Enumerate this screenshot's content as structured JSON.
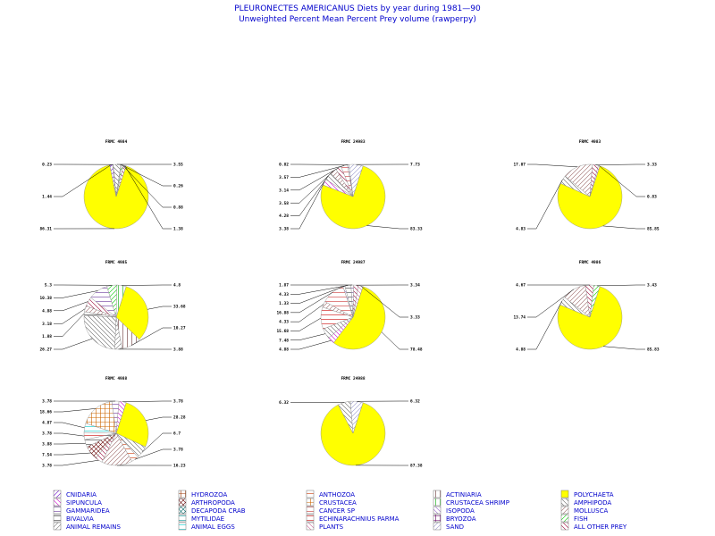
{
  "title": "PLEURONECTES AMERICANUS Diets by year during 1981—90",
  "subtitle": "Unweighted Percent Mean Percent Prey  volume (rawperpy)",
  "legend": [
    {
      "name": "CNIDARIA",
      "color": "#6600cc"
    },
    {
      "name": "SIPUNCULA",
      "color": "#cc00cc"
    },
    {
      "name": "GAMMARIDEA",
      "color": "#663399"
    },
    {
      "name": "BIVALVIA",
      "color": "#333333"
    },
    {
      "name": "ANIMAL REMAINS",
      "color": "#777777"
    },
    {
      "name": "HYDROZOA",
      "color": "#993300"
    },
    {
      "name": "ARTHROPODA",
      "color": "#660000"
    },
    {
      "name": "DECAPODA CRAB",
      "color": "#006666"
    },
    {
      "name": "MYTILIDAE",
      "color": "#009999"
    },
    {
      "name": "ANIMAL EGGS",
      "color": "#00cccc"
    },
    {
      "name": "ANTHOZOA",
      "color": "#cc3300"
    },
    {
      "name": "CRUSTACEA",
      "color": "#cc6600"
    },
    {
      "name": "CANCER SP",
      "color": "#cc3333"
    },
    {
      "name": "ECHINARACHNIUS PARMA",
      "color": "#cc0000"
    },
    {
      "name": "PLANTS",
      "color": "#cc6699"
    },
    {
      "name": "ACTINIARIA",
      "color": "#663333"
    },
    {
      "name": "CRUSTACEA SHRIMP",
      "color": "#00aa00"
    },
    {
      "name": "ISOPODA",
      "color": "#9966cc"
    },
    {
      "name": "BRYOZOA",
      "color": "#660066"
    },
    {
      "name": "SAND",
      "color": "#9999cc"
    },
    {
      "name": "POLYCHAETA",
      "color": "#ffff00"
    },
    {
      "name": "AMPHIPODA",
      "color": "#666666"
    },
    {
      "name": "MOLLUSCA",
      "color": "#996666"
    },
    {
      "name": "FISH",
      "color": "#00cc00"
    },
    {
      "name": "ALL OTHER PREY",
      "color": "#990033"
    }
  ],
  "chart_data": [
    {
      "type": "pie",
      "title": "FRMC 4984",
      "slices": [
        {
          "category": "POLYCHAETA",
          "value": 86.31,
          "label": "86.31"
        },
        {
          "category": "CNIDARIA",
          "value": 1.44,
          "label": "1.44"
        },
        {
          "category": "HYDROZOA",
          "value": 0.23,
          "label": "0.23"
        },
        {
          "category": "AMPHIPODA",
          "value": 3.55,
          "label": "3.55"
        },
        {
          "category": "MOLLUSCA",
          "value": 0.26,
          "label": "0.26"
        },
        {
          "category": "FISH",
          "value": 0.88,
          "label": "0.88"
        },
        {
          "category": "ALL OTHER PREY",
          "value": 1.38,
          "label": "1.38"
        }
      ]
    },
    {
      "type": "pie",
      "title": "FRMC 24983",
      "slices": [
        {
          "category": "POLYCHAETA",
          "value": 83.33,
          "label": "83.33"
        },
        {
          "category": "SIPUNCULA",
          "value": 3.38,
          "label": "3.38"
        },
        {
          "category": "AMPHIPODA",
          "value": 4.28,
          "label": "4.28"
        },
        {
          "category": "MOLLUSCA",
          "value": 3.58,
          "label": "3.58"
        },
        {
          "category": "ALL OTHER PREY",
          "value": 3.14,
          "label": "3.14"
        },
        {
          "category": "CANCER SP",
          "value": 3.57,
          "label": "3.57"
        },
        {
          "category": "BRYOZOA",
          "value": 0.82,
          "label": "0.82"
        },
        {
          "category": "SAND",
          "value": 7.73,
          "label": "7.73"
        }
      ]
    },
    {
      "type": "pie",
      "title": "FRMC 4983",
      "slices": [
        {
          "category": "POLYCHAETA",
          "value": 85.85,
          "label": "85.85"
        },
        {
          "category": "AMPHIPODA",
          "value": 4.83,
          "label": "4.83"
        },
        {
          "category": "MOLLUSCA",
          "value": 17.07,
          "label": "17.07"
        },
        {
          "category": "ALL OTHER PREY",
          "value": 3.33,
          "label": "3.33"
        },
        {
          "category": "SIPUNCULA",
          "value": 0.83,
          "label": "0.83"
        }
      ]
    },
    {
      "type": "pie",
      "title": "FRMC 4985",
      "slices": [
        {
          "category": "POLYCHAETA",
          "value": 33.68,
          "label": "33.68"
        },
        {
          "category": "ACTINIARIA",
          "value": 10.27,
          "label": "10.27"
        },
        {
          "category": "ANIMAL REMAINS",
          "value": 3.88,
          "label": "3.88"
        },
        {
          "category": "AMPHIPODA",
          "value": 26.27,
          "label": "26.27"
        },
        {
          "category": "BIVALVIA",
          "value": 1.88,
          "label": "1.88"
        },
        {
          "category": "MOLLUSCA",
          "value": 3.18,
          "label": "3.18"
        },
        {
          "category": "ALL OTHER PREY",
          "value": 4.88,
          "label": "4.88"
        },
        {
          "category": "GAMMARIDEA",
          "value": 10.38,
          "label": "10.38"
        },
        {
          "category": "FISH",
          "value": 5.3,
          "label": "5.3"
        },
        {
          "category": "CRUSTACEA SHRIMP",
          "value": 4.8,
          "label": "4.8"
        }
      ]
    },
    {
      "type": "pie",
      "title": "FRMC 24987",
      "slices": [
        {
          "category": "POLYCHAETA",
          "value": 78.48,
          "label": "78.48"
        },
        {
          "category": "SIPUNCULA",
          "value": 4.88,
          "label": "4.88"
        },
        {
          "category": "AMPHIPODA",
          "value": 7.48,
          "label": "7.48"
        },
        {
          "category": "ECHINARACHNIUS PARMA",
          "value": 15.68,
          "label": "15.68"
        },
        {
          "category": "MOLLUSCA",
          "value": 4.33,
          "label": "4.33"
        },
        {
          "category": "CANCER SP",
          "value": 16.88,
          "label": "16.88"
        },
        {
          "category": "ISOPODA",
          "value": 1.33,
          "label": "1.33"
        },
        {
          "category": "BIVALVIA",
          "value": 4.33,
          "label": "4.33"
        },
        {
          "category": "GAMMARIDEA",
          "value": 1.87,
          "label": "1.87"
        },
        {
          "category": "ALL OTHER PREY",
          "value": 3.34,
          "label": "3.34"
        },
        {
          "category": "PLANTS",
          "value": 3.33,
          "label": "3.33"
        }
      ]
    },
    {
      "type": "pie",
      "title": "FRMC 4986",
      "slices": [
        {
          "category": "POLYCHAETA",
          "value": 85.83,
          "label": "85.83"
        },
        {
          "category": "AMPHIPODA",
          "value": 4.88,
          "label": "4.88"
        },
        {
          "category": "MOLLUSCA",
          "value": 13.74,
          "label": "13.74"
        },
        {
          "category": "ALL OTHER PREY",
          "value": 4.67,
          "label": "4.67"
        },
        {
          "category": "FISH",
          "value": 3.43,
          "label": "3.43"
        }
      ]
    },
    {
      "type": "pie",
      "title": "FRMC 4988",
      "slices": [
        {
          "category": "POLYCHAETA",
          "value": 28.28,
          "label": "28.28"
        },
        {
          "category": "AMPHIPODA",
          "value": 6.7,
          "label": "6.7"
        },
        {
          "category": "ANTHOZOA",
          "value": 3.78,
          "label": "3.78"
        },
        {
          "category": "MOLLUSCA",
          "value": 16.23,
          "label": "16.23"
        },
        {
          "category": "ALL OTHER PREY",
          "value": 3.78,
          "label": "3.78"
        },
        {
          "category": "ARTHROPODA",
          "value": 7.54,
          "label": "7.54"
        },
        {
          "category": "BIVALVIA",
          "value": 3.88,
          "label": "3.88"
        },
        {
          "category": "ECHINARACHNIUS PARMA",
          "value": 3.78,
          "label": "3.78"
        },
        {
          "category": "ANIMAL EGGS",
          "value": 4.87,
          "label": "4.87"
        },
        {
          "category": "CRUSTACEA",
          "value": 18.66,
          "label": "18.66"
        },
        {
          "category": "GAMMARIDEA",
          "value": 3.78,
          "label": "3.78"
        },
        {
          "category": "SIPUNCULA",
          "value": 3.78,
          "label": "3.78"
        }
      ]
    },
    {
      "type": "pie",
      "title": "FRMC 24988",
      "slices": [
        {
          "category": "POLYCHAETA",
          "value": 87.38,
          "label": "87.38"
        },
        {
          "category": "AMPHIPODA",
          "value": 6.32,
          "label": "6.32"
        },
        {
          "category": "SAND",
          "value": 6.32,
          "label": "6.32"
        }
      ]
    }
  ]
}
